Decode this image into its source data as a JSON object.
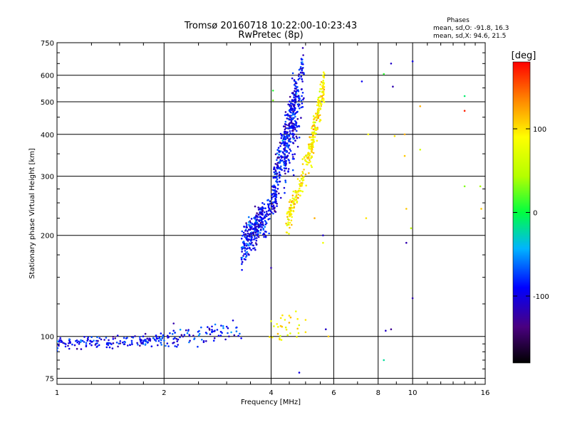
{
  "chart_data": {
    "type": "scatter",
    "title": "Tromsø 20160718 10:22:00-10:23:43",
    "subtitle": "RwPretec (8p)",
    "xlabel": "Frequency [MHz]",
    "ylabel": "Stationary phase Virtual Height [km]",
    "x_scale": "log",
    "y_scale": "log",
    "xlim": [
      1,
      16
    ],
    "ylim": [
      72,
      750
    ],
    "x_ticks": [
      1,
      2,
      4,
      6,
      8,
      10,
      16
    ],
    "x_tick_labels": [
      "1",
      "2",
      "4",
      "6",
      "8",
      "10",
      "16"
    ],
    "y_ticks": [
      75,
      100,
      200,
      300,
      400,
      500,
      600,
      750
    ],
    "y_tick_labels": [
      "75",
      "100",
      "200",
      "300",
      "400",
      "500",
      "600",
      "750"
    ],
    "grid": true,
    "legend": {
      "title": "Phases",
      "lines": [
        "mean, sd,O: -91.8, 16.3",
        "mean, sd,X:  94.6, 21.5"
      ],
      "placement": "top-right"
    },
    "colorbar": {
      "label": "[deg]",
      "range": [
        -180,
        180
      ],
      "ticks": [
        100,
        0,
        -100
      ],
      "tick_labels": [
        "100",
        "0",
        "-100"
      ]
    },
    "series": [
      {
        "mode": "O",
        "phase_mean": -91.8,
        "segments": [
          {
            "f1": 1.0,
            "f2": 2.0,
            "h1": 95,
            "h2": 98,
            "hsd": 2,
            "n": 160
          },
          {
            "f1": 2.0,
            "f2": 3.3,
            "h1": 98,
            "h2": 106,
            "hsd": 4,
            "n": 90
          },
          {
            "f1": 3.3,
            "f2": 3.8,
            "h1": 180,
            "h2": 230,
            "hsd": 12,
            "n": 260
          },
          {
            "f1": 3.8,
            "f2": 4.15,
            "h1": 215,
            "h2": 270,
            "hsd": 14,
            "n": 90
          },
          {
            "f1": 4.05,
            "f2": 4.4,
            "h1": 270,
            "h2": 400,
            "hsd": 30,
            "n": 140
          },
          {
            "f1": 4.35,
            "f2": 4.7,
            "h1": 330,
            "h2": 520,
            "hsd": 45,
            "n": 220
          },
          {
            "f1": 4.6,
            "f2": 4.95,
            "h1": 380,
            "h2": 640,
            "hsd": 70,
            "n": 120
          }
        ]
      },
      {
        "mode": "X",
        "phase_mean": 94.6,
        "segments": [
          {
            "f1": 3.9,
            "f2": 4.8,
            "h1": 102,
            "h2": 110,
            "hsd": 6,
            "n": 30
          },
          {
            "f1": 4.4,
            "f2": 4.9,
            "h1": 215,
            "h2": 290,
            "hsd": 10,
            "n": 100
          },
          {
            "f1": 4.9,
            "f2": 5.3,
            "h1": 300,
            "h2": 400,
            "hsd": 20,
            "n": 80
          },
          {
            "f1": 5.2,
            "f2": 5.65,
            "h1": 380,
            "h2": 560,
            "hsd": 30,
            "n": 130
          }
        ]
      }
    ],
    "scattered_points": [
      [
        7.2,
        575,
        -95
      ],
      [
        7.5,
        400,
        90
      ],
      [
        7.4,
        225,
        100
      ],
      [
        8.3,
        605,
        10
      ],
      [
        8.7,
        650,
        -110
      ],
      [
        8.8,
        555,
        -120
      ],
      [
        8.9,
        395,
        100
      ],
      [
        9.5,
        400,
        120
      ],
      [
        9.5,
        345,
        110
      ],
      [
        9.6,
        240,
        110
      ],
      [
        9.6,
        190,
        -120
      ],
      [
        9.9,
        210,
        50
      ],
      [
        10.0,
        660,
        -100
      ],
      [
        10.0,
        130,
        -120
      ],
      [
        10.5,
        485,
        120
      ],
      [
        10.5,
        360,
        60
      ],
      [
        14.0,
        520,
        -10
      ],
      [
        14.0,
        470,
        170
      ],
      [
        14.0,
        280,
        30
      ],
      [
        15.5,
        280,
        40
      ],
      [
        15.6,
        240,
        110
      ],
      [
        8.4,
        104,
        -110
      ],
      [
        8.7,
        105,
        -130
      ],
      [
        8.3,
        85,
        -20
      ],
      [
        4.8,
        78,
        -100
      ],
      [
        4.0,
        160,
        -120
      ],
      [
        5.6,
        200,
        -110
      ],
      [
        5.6,
        190,
        80
      ],
      [
        5.3,
        225,
        120
      ],
      [
        4.05,
        505,
        30
      ],
      [
        4.05,
        540,
        10
      ],
      [
        5.7,
        105,
        -110
      ],
      [
        5.8,
        100,
        110
      ],
      [
        5.0,
        103,
        100
      ],
      [
        5.0,
        112,
        100
      ]
    ]
  }
}
